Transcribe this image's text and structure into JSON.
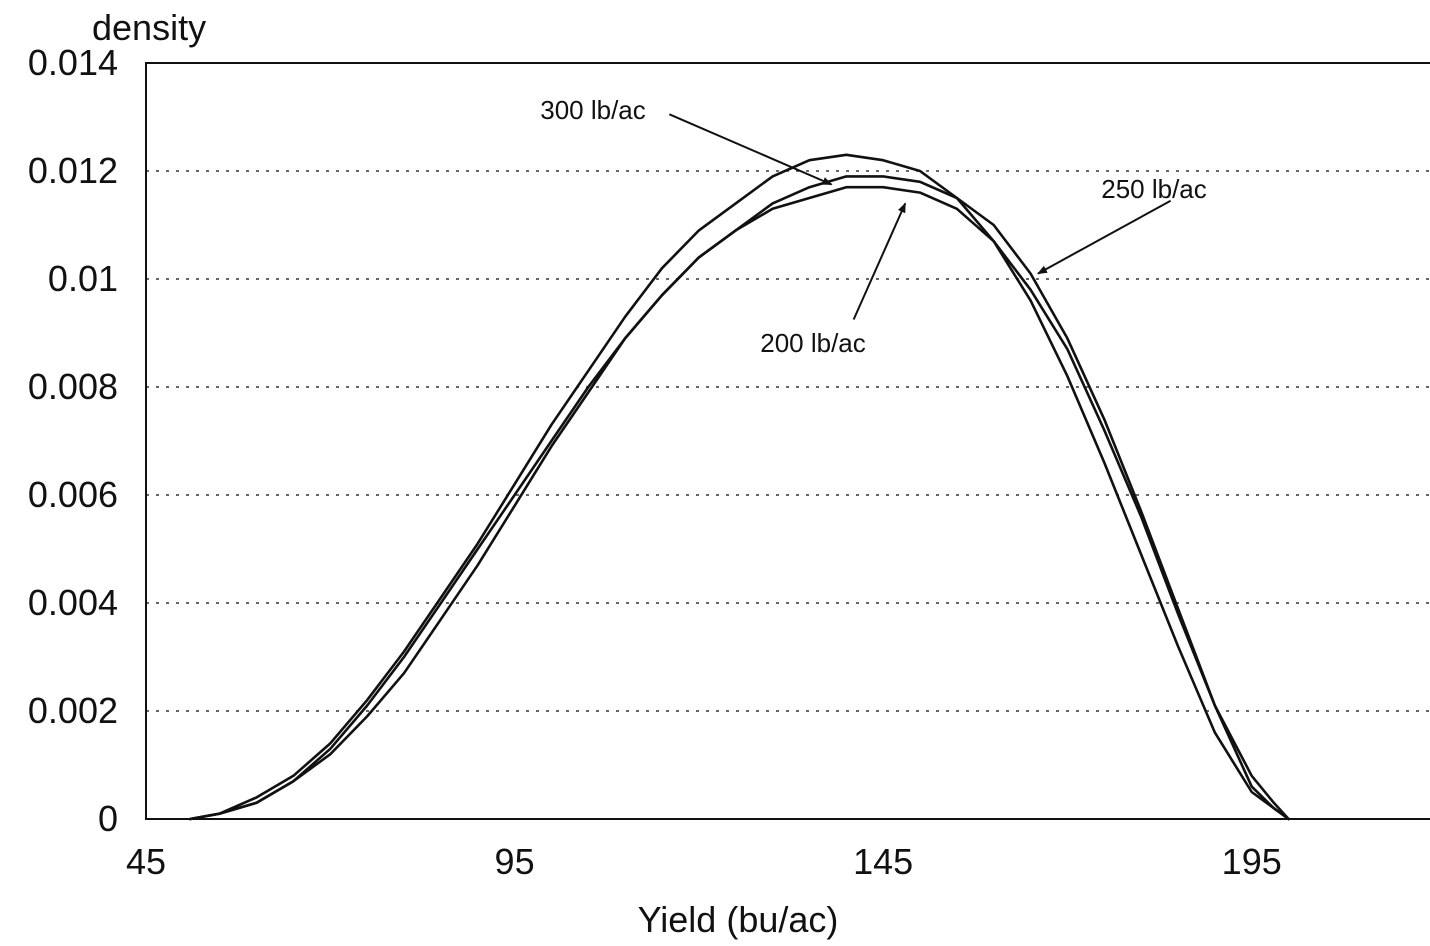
{
  "chart_data": {
    "type": "line",
    "title": "",
    "xlabel": "Yield (bu/ac)",
    "ylabel": "density",
    "xlim": [
      45,
      220
    ],
    "ylim": [
      0,
      0.014
    ],
    "x_ticks": [
      45,
      95,
      145,
      195
    ],
    "y_ticks": [
      0,
      0.002,
      0.004,
      0.006,
      0.008,
      0.01,
      0.012,
      0.014
    ],
    "y_tick_labels": [
      "0",
      "0.002",
      "0.004",
      "0.006",
      "0.008",
      "0.01",
      "0.012",
      "0.014"
    ],
    "grid": "horizontal dotted",
    "line_color": "#111111",
    "series": [
      {
        "name": "300 lb/ac",
        "x": [
          51,
          55,
          60,
          65,
          70,
          75,
          80,
          85,
          90,
          95,
          100,
          105,
          110,
          115,
          120,
          125,
          130,
          135,
          140,
          145,
          150,
          155,
          160,
          165,
          170,
          175,
          180,
          185,
          190,
          195,
          198,
          200
        ],
        "y": [
          0,
          0.0001,
          0.0004,
          0.0008,
          0.0014,
          0.0022,
          0.0031,
          0.0041,
          0.0051,
          0.0062,
          0.0073,
          0.0083,
          0.0093,
          0.0102,
          0.0109,
          0.0114,
          0.0119,
          0.0122,
          0.0123,
          0.0122,
          0.012,
          0.0115,
          0.0107,
          0.0096,
          0.0082,
          0.0066,
          0.0049,
          0.0032,
          0.0016,
          0.0005,
          0.0002,
          0
        ]
      },
      {
        "name": "250 lb/ac",
        "x": [
          51,
          55,
          60,
          65,
          70,
          75,
          80,
          85,
          90,
          95,
          100,
          105,
          110,
          115,
          120,
          125,
          130,
          135,
          140,
          145,
          150,
          155,
          160,
          165,
          170,
          175,
          180,
          185,
          190,
          195,
          198,
          200
        ],
        "y": [
          0,
          0.0001,
          0.0003,
          0.0007,
          0.0012,
          0.0019,
          0.0027,
          0.0037,
          0.0047,
          0.0058,
          0.0069,
          0.0079,
          0.0089,
          0.0097,
          0.0104,
          0.0109,
          0.0114,
          0.0117,
          0.0119,
          0.0119,
          0.0118,
          0.0115,
          0.011,
          0.0101,
          0.0089,
          0.0074,
          0.0057,
          0.0039,
          0.0021,
          0.0006,
          0.0002,
          0
        ]
      },
      {
        "name": "200 lb/ac",
        "x": [
          51,
          55,
          60,
          65,
          70,
          75,
          80,
          85,
          90,
          95,
          100,
          105,
          110,
          115,
          120,
          125,
          130,
          135,
          140,
          145,
          150,
          155,
          160,
          165,
          170,
          175,
          180,
          185,
          190,
          195,
          198,
          200
        ],
        "y": [
          0,
          0.0001,
          0.0003,
          0.0007,
          0.0013,
          0.0021,
          0.003,
          0.004,
          0.005,
          0.006,
          0.007,
          0.008,
          0.0089,
          0.0097,
          0.0104,
          0.0109,
          0.0113,
          0.0115,
          0.0117,
          0.0117,
          0.0116,
          0.0113,
          0.0107,
          0.0098,
          0.0087,
          0.0072,
          0.0056,
          0.0038,
          0.0021,
          0.0008,
          0.0003,
          0
        ]
      }
    ],
    "annotations": [
      {
        "text": "300 lb/ac",
        "arrow_from": [
          116,
          0.01305
        ],
        "arrow_to": [
          138,
          0.01175
        ]
      },
      {
        "text": "250 lb/ac",
        "arrow_from": [
          184,
          0.01145
        ],
        "arrow_to": [
          166,
          0.0101
        ]
      },
      {
        "text": "200 lb/ac",
        "arrow_from": [
          141,
          0.00925
        ],
        "arrow_to": [
          148,
          0.0114
        ]
      }
    ]
  }
}
